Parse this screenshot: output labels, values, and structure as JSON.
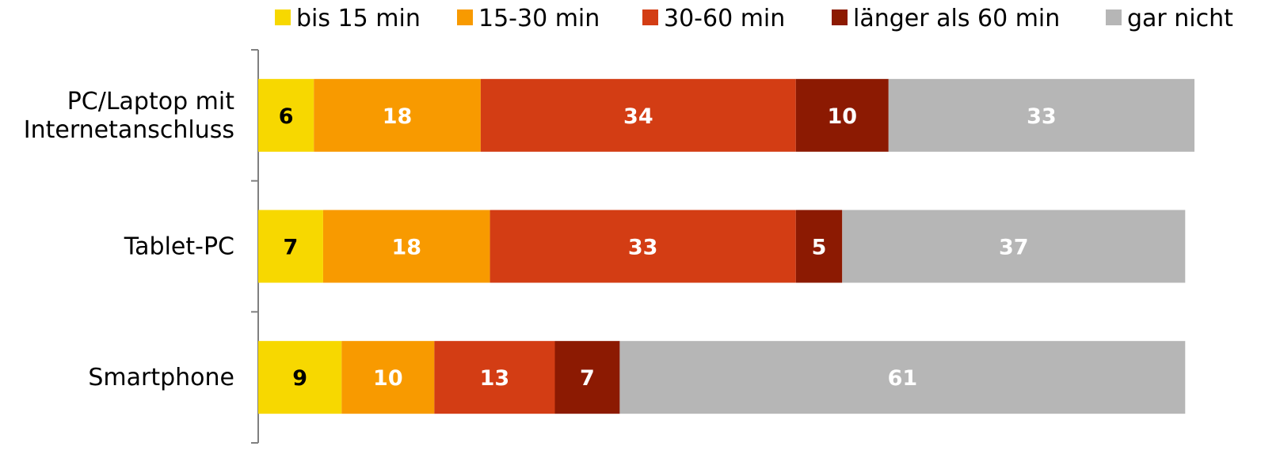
{
  "chart_data": {
    "type": "bar",
    "orientation": "horizontal",
    "stacked": true,
    "categories": [
      [
        "PC/Laptop mit",
        "Internetanschluss"
      ],
      [
        "Tablet-PC"
      ],
      [
        "Smartphone"
      ]
    ],
    "series": [
      {
        "name": "bis 15 min",
        "color": "#f7d800",
        "label_color": "#000000",
        "values": [
          6,
          7,
          9
        ]
      },
      {
        "name": "15-30 min",
        "color": "#f89a00",
        "label_color": "#ffffff",
        "values": [
          18,
          18,
          10
        ]
      },
      {
        "name": "30-60 min",
        "color": "#d33d14",
        "label_color": "#ffffff",
        "values": [
          34,
          33,
          13
        ]
      },
      {
        "name": "länger als 60 min",
        "color": "#8c1a02",
        "label_color": "#ffffff",
        "values": [
          10,
          5,
          7
        ]
      },
      {
        "name": "gar nicht",
        "color": "#b6b6b6",
        "label_color": "#ffffff",
        "values": [
          33,
          37,
          61
        ]
      }
    ],
    "xlim": [
      0,
      101
    ],
    "legend_position": "top",
    "grid": false
  }
}
